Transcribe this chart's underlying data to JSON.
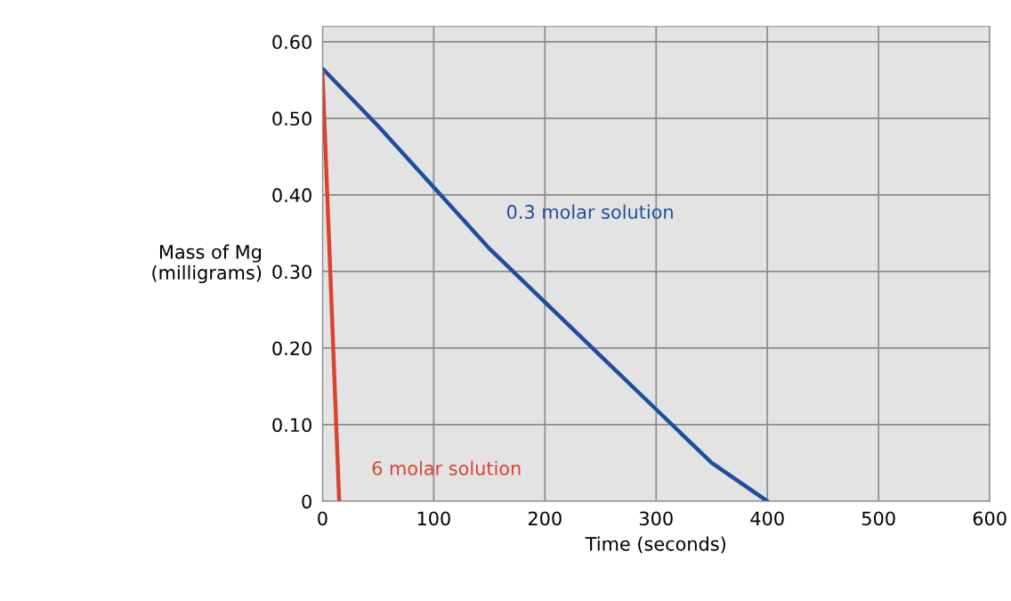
{
  "chart_data": {
    "type": "line",
    "xlabel": "Time (seconds)",
    "ylabel": "Mass of Mg\n(milligrams)",
    "xlim": [
      0,
      600
    ],
    "xticks": [
      0,
      100,
      200,
      300,
      400,
      500,
      600
    ],
    "ylim": [
      0,
      0.62
    ],
    "yticks": [
      0,
      {
        "value": 0.1,
        "label": "0.10"
      },
      {
        "value": 0.2,
        "label": "0.20"
      },
      {
        "value": 0.3,
        "label": "0.30"
      },
      {
        "value": 0.4,
        "label": "0.40"
      },
      {
        "value": 0.5,
        "label": "0.50"
      },
      {
        "value": 0.6,
        "label": "0.60"
      }
    ],
    "grid": true,
    "legend": false,
    "marker": "none",
    "line_style": "solid",
    "series": [
      {
        "name": "0.3 molar solution",
        "color": "#1f4e9c",
        "x": [
          0,
          50,
          100,
          150,
          200,
          250,
          300,
          350,
          400
        ],
        "values": [
          0.565,
          0.49,
          0.41,
          0.33,
          0.26,
          0.19,
          0.12,
          0.05,
          0
        ]
      },
      {
        "name": "6 molar solution",
        "color": "#d9432f",
        "x": [
          0,
          15
        ],
        "values": [
          0.56,
          0
        ]
      }
    ]
  }
}
